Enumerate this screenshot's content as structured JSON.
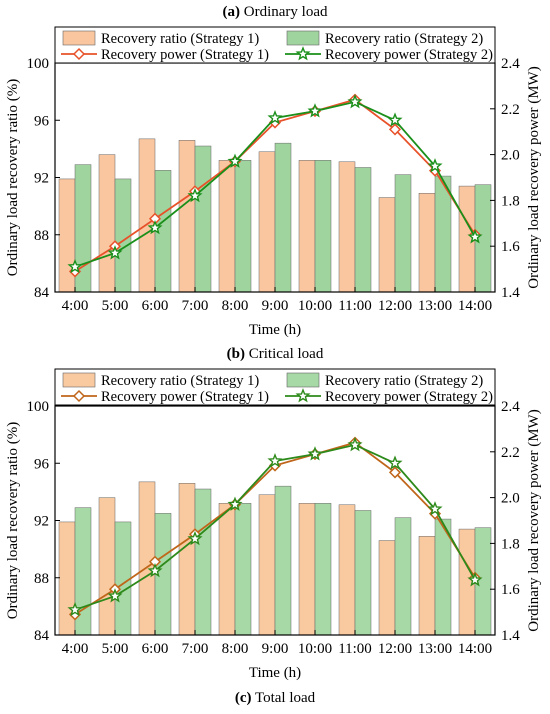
{
  "chart_data": [
    {
      "type": "bar",
      "caption_letter": "(a)",
      "caption_text": "Ordinary load",
      "categories": [
        "4:00",
        "5:00",
        "6:00",
        "7:00",
        "8:00",
        "9:00",
        "10:00",
        "11:00",
        "12:00",
        "13:00",
        "14:00"
      ],
      "xlabel": "Time (h)",
      "ylabel": "Ordinary load recovery ratio (%)",
      "y2label": "Ordinary load recovery power (MW)",
      "ylim": [
        84,
        100
      ],
      "yticks": [
        84,
        88,
        92,
        96,
        100
      ],
      "y2lim": [
        1.4,
        2.4
      ],
      "y2ticks": [
        "1.4",
        "1.6",
        "1.8",
        "2.0",
        "2.2",
        "2.4"
      ],
      "grid": false,
      "legend_position": "top",
      "bar_series": [
        {
          "name": "Recovery ratio (Strategy 1)",
          "color": "#f9c6a0",
          "values": [
            91.9,
            93.6,
            94.7,
            94.6,
            93.2,
            93.8,
            93.2,
            93.1,
            90.6,
            90.9,
            91.4
          ]
        },
        {
          "name": "Recovery ratio (Strategy 2)",
          "color": "#9fd49f",
          "values": [
            92.9,
            91.9,
            92.5,
            94.2,
            93.2,
            94.4,
            93.2,
            92.7,
            92.2,
            92.1,
            91.5
          ]
        }
      ],
      "line_series": [
        {
          "name": "Recovery power (Strategy 1)",
          "color": "#e8522a",
          "marker": "diamond",
          "values": [
            1.49,
            1.6,
            1.72,
            1.84,
            1.97,
            2.14,
            2.19,
            2.24,
            2.11,
            1.93,
            1.65
          ]
        },
        {
          "name": "Recovery power (Strategy 2)",
          "color": "#1a8f1a",
          "marker": "star",
          "values": [
            1.51,
            1.57,
            1.68,
            1.82,
            1.97,
            2.16,
            2.19,
            2.23,
            2.15,
            1.95,
            1.64
          ]
        }
      ]
    },
    {
      "type": "bar",
      "caption_letter": "(b)",
      "caption_text": "Critical load",
      "categories": [
        "4:00",
        "5:00",
        "6:00",
        "7:00",
        "8:00",
        "9:00",
        "10:00",
        "11:00",
        "12:00",
        "13:00",
        "14:00"
      ],
      "xlabel": "Time (h)",
      "ylabel": "Ordinary load recovery ratio (%)",
      "y2label": "Ordinary load recovery power (MW)",
      "ylim": [
        84,
        100
      ],
      "yticks": [
        84,
        88,
        92,
        96,
        100
      ],
      "y2lim": [
        1.4,
        2.4
      ],
      "y2ticks": [
        "1.4",
        "1.6",
        "1.8",
        "2.0",
        "2.2",
        "2.4"
      ],
      "grid": false,
      "legend_position": "top",
      "bar_series": [
        {
          "name": "Recovery ratio (Strategy 1)",
          "color": "#f9c9a0",
          "values": [
            91.9,
            93.6,
            94.7,
            94.6,
            93.2,
            93.8,
            93.2,
            93.1,
            90.6,
            90.9,
            91.4
          ]
        },
        {
          "name": "Recovery ratio (Strategy 2)",
          "color": "#a6d9a6",
          "values": [
            92.9,
            91.9,
            92.5,
            94.2,
            93.2,
            94.4,
            93.2,
            92.7,
            92.2,
            92.1,
            91.5
          ]
        }
      ],
      "line_series": [
        {
          "name": "Recovery power (Strategy 1)",
          "color": "#c0661a",
          "marker": "diamond",
          "values": [
            1.49,
            1.6,
            1.72,
            1.84,
            1.97,
            2.14,
            2.19,
            2.24,
            2.11,
            1.93,
            1.65
          ]
        },
        {
          "name": "Recovery power (Strategy 2)",
          "color": "#2d8a1a",
          "marker": "star",
          "values": [
            1.51,
            1.57,
            1.68,
            1.82,
            1.97,
            2.16,
            2.19,
            2.23,
            2.15,
            1.95,
            1.64
          ]
        }
      ]
    }
  ],
  "bottom_caption": {
    "letter": "(c)",
    "text": "Total load"
  }
}
